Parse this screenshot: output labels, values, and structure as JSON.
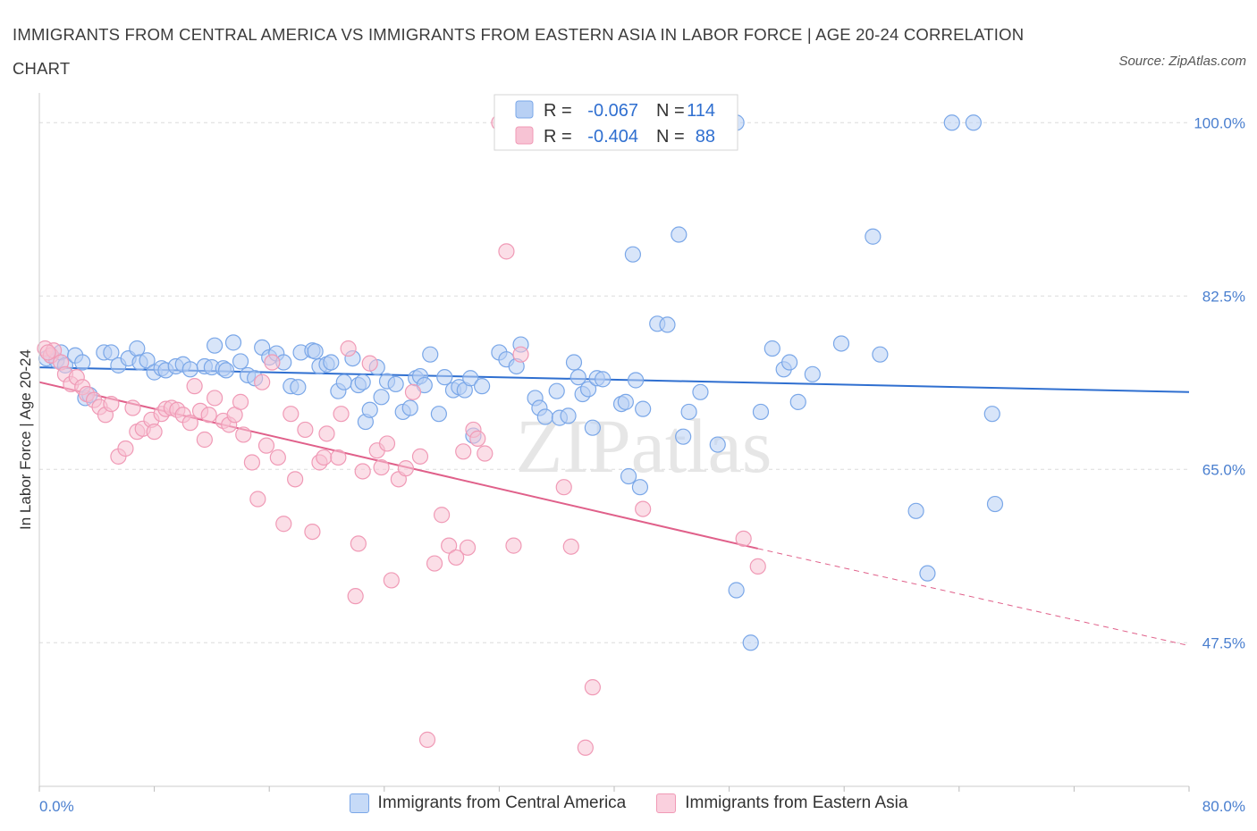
{
  "title": "IMMIGRANTS FROM CENTRAL AMERICA VS IMMIGRANTS FROM EASTERN ASIA IN LABOR FORCE | AGE 20-24 CORRELATION CHART",
  "source": "Source: ZipAtlas.com",
  "watermark": "ZIPatlas",
  "chart_data": {
    "type": "scatter",
    "title": "IMMIGRANTS FROM CENTRAL AMERICA VS IMMIGRANTS FROM EASTERN ASIA IN LABOR FORCE | AGE 20-24 CORRELATION CHART",
    "ylabel": "In Labor Force | Age 20-24",
    "xlabel": "",
    "xlim": [
      0,
      80
    ],
    "ylim": [
      33,
      103
    ],
    "x_tick_labels": [
      "0.0%",
      "80.0%"
    ],
    "y_ticks": [
      47.5,
      65.0,
      82.5,
      100.0
    ],
    "y_tick_labels": [
      "47.5%",
      "65.0%",
      "82.5%",
      "100.0%"
    ],
    "grid": "horizontal dashed",
    "legend_position": "bottom-center",
    "stats_labels": {
      "r": "R =",
      "n": "N ="
    },
    "series": [
      {
        "name": "Immigrants from Central America",
        "color": "#7aa7e8",
        "fill": "#b8d0f4",
        "line_color": "#2f6fd0",
        "r": "-0.067",
        "n": "114",
        "trend": {
          "x": [
            0,
            80
          ],
          "y": [
            75.3,
            72.8
          ]
        },
        "points": [
          [
            0.5,
            76.2
          ],
          [
            0.8,
            76.5
          ],
          [
            1.2,
            76.0
          ],
          [
            1.5,
            76.8
          ],
          [
            1.8,
            75.5
          ],
          [
            2.5,
            76.5
          ],
          [
            3.0,
            75.8
          ],
          [
            3.2,
            72.2
          ],
          [
            3.5,
            72.5
          ],
          [
            4.5,
            76.8
          ],
          [
            5.0,
            76.8
          ],
          [
            5.5,
            75.5
          ],
          [
            6.2,
            76.2
          ],
          [
            6.8,
            77.2
          ],
          [
            7.0,
            75.8
          ],
          [
            7.5,
            76.0
          ],
          [
            8.0,
            74.8
          ],
          [
            8.5,
            75.2
          ],
          [
            8.8,
            75.0
          ],
          [
            9.5,
            75.4
          ],
          [
            10.0,
            75.6
          ],
          [
            10.5,
            75.1
          ],
          [
            11.5,
            75.4
          ],
          [
            12.0,
            75.3
          ],
          [
            12.2,
            77.5
          ],
          [
            12.8,
            75.2
          ],
          [
            13.0,
            75.0
          ],
          [
            13.5,
            77.8
          ],
          [
            14.0,
            75.9
          ],
          [
            14.5,
            74.5
          ],
          [
            15.0,
            74.2
          ],
          [
            15.5,
            77.3
          ],
          [
            16.0,
            76.3
          ],
          [
            16.5,
            76.7
          ],
          [
            17.0,
            75.8
          ],
          [
            17.5,
            73.4
          ],
          [
            18.0,
            73.3
          ],
          [
            18.2,
            76.8
          ],
          [
            19.0,
            77.0
          ],
          [
            19.2,
            76.9
          ],
          [
            19.5,
            75.4
          ],
          [
            20.0,
            75.6
          ],
          [
            20.3,
            75.8
          ],
          [
            20.8,
            72.9
          ],
          [
            21.2,
            73.8
          ],
          [
            21.8,
            76.2
          ],
          [
            22.2,
            73.5
          ],
          [
            22.5,
            73.8
          ],
          [
            22.7,
            69.8
          ],
          [
            23.0,
            71.0
          ],
          [
            23.5,
            75.3
          ],
          [
            23.8,
            72.3
          ],
          [
            24.2,
            73.9
          ],
          [
            24.8,
            73.6
          ],
          [
            25.3,
            70.8
          ],
          [
            25.8,
            71.2
          ],
          [
            26.2,
            74.2
          ],
          [
            26.5,
            74.4
          ],
          [
            26.8,
            73.5
          ],
          [
            27.2,
            76.6
          ],
          [
            27.8,
            70.6
          ],
          [
            28.2,
            74.3
          ],
          [
            28.8,
            73.0
          ],
          [
            29.2,
            73.3
          ],
          [
            29.6,
            73.0
          ],
          [
            30.0,
            74.2
          ],
          [
            30.2,
            68.4
          ],
          [
            30.8,
            73.4
          ],
          [
            32.0,
            76.8
          ],
          [
            32.5,
            76.1
          ],
          [
            33.2,
            75.4
          ],
          [
            33.5,
            77.6
          ],
          [
            34.5,
            72.2
          ],
          [
            34.8,
            71.2
          ],
          [
            35.2,
            70.3
          ],
          [
            36.0,
            72.9
          ],
          [
            36.2,
            70.2
          ],
          [
            36.8,
            70.4
          ],
          [
            37.2,
            75.8
          ],
          [
            37.5,
            74.3
          ],
          [
            37.8,
            72.6
          ],
          [
            38.2,
            73.1
          ],
          [
            38.5,
            69.2
          ],
          [
            38.8,
            74.2
          ],
          [
            39.2,
            74.1
          ],
          [
            40.5,
            71.6
          ],
          [
            40.8,
            71.8
          ],
          [
            41.0,
            64.3
          ],
          [
            41.5,
            74.0
          ],
          [
            41.8,
            63.2
          ],
          [
            42.0,
            71.1
          ],
          [
            43.0,
            79.7
          ],
          [
            44.5,
            88.7
          ],
          [
            44.8,
            68.3
          ],
          [
            45.2,
            70.8
          ],
          [
            46.0,
            72.8
          ],
          [
            47.2,
            67.5
          ],
          [
            48.5,
            52.8
          ],
          [
            49.5,
            47.5
          ],
          [
            50.2,
            70.8
          ],
          [
            51.0,
            77.2
          ],
          [
            51.8,
            75.1
          ],
          [
            52.2,
            75.8
          ],
          [
            52.8,
            71.8
          ],
          [
            53.8,
            74.6
          ],
          [
            55.8,
            77.7
          ],
          [
            58.0,
            88.5
          ],
          [
            58.5,
            76.6
          ],
          [
            61.0,
            60.8
          ],
          [
            61.8,
            54.5
          ],
          [
            63.5,
            100.0
          ],
          [
            65.0,
            100.0
          ],
          [
            66.3,
            70.6
          ],
          [
            66.5,
            61.5
          ],
          [
            47.8,
            100.0
          ],
          [
            48.5,
            100.0
          ],
          [
            41.3,
            86.7
          ],
          [
            43.7,
            79.6
          ]
        ]
      },
      {
        "name": "Immigrants from Eastern Asia",
        "color": "#f09ab6",
        "fill": "#f7c3d4",
        "line_color": "#e0608a",
        "r": "-0.404",
        "n": "88",
        "trend": {
          "x": [
            0,
            50
          ],
          "y": [
            73.8,
            57.0
          ]
        },
        "trend_dashed": {
          "x": [
            50,
            80
          ],
          "y": [
            57.0,
            47.2
          ]
        },
        "points": [
          [
            0.4,
            77.2
          ],
          [
            0.8,
            76.5
          ],
          [
            1.0,
            77.0
          ],
          [
            1.5,
            75.8
          ],
          [
            1.8,
            74.6
          ],
          [
            2.2,
            73.6
          ],
          [
            2.6,
            74.3
          ],
          [
            3.0,
            73.3
          ],
          [
            3.3,
            72.6
          ],
          [
            3.8,
            72.0
          ],
          [
            4.2,
            71.3
          ],
          [
            4.6,
            70.5
          ],
          [
            5.0,
            71.6
          ],
          [
            5.5,
            66.3
          ],
          [
            6.0,
            67.1
          ],
          [
            6.5,
            71.2
          ],
          [
            6.8,
            68.8
          ],
          [
            7.2,
            69.1
          ],
          [
            7.8,
            70.0
          ],
          [
            8.0,
            68.8
          ],
          [
            8.5,
            70.6
          ],
          [
            8.8,
            71.1
          ],
          [
            9.2,
            71.2
          ],
          [
            9.6,
            71.0
          ],
          [
            10.0,
            70.5
          ],
          [
            10.5,
            69.7
          ],
          [
            10.8,
            73.4
          ],
          [
            11.2,
            70.9
          ],
          [
            11.5,
            68.0
          ],
          [
            11.8,
            70.5
          ],
          [
            12.2,
            72.2
          ],
          [
            12.8,
            69.9
          ],
          [
            13.2,
            69.5
          ],
          [
            13.6,
            70.5
          ],
          [
            14.0,
            71.8
          ],
          [
            14.2,
            68.5
          ],
          [
            14.8,
            65.7
          ],
          [
            15.2,
            62.0
          ],
          [
            15.5,
            73.8
          ],
          [
            15.8,
            67.4
          ],
          [
            16.2,
            75.8
          ],
          [
            16.6,
            66.2
          ],
          [
            17.0,
            59.5
          ],
          [
            17.5,
            70.6
          ],
          [
            17.8,
            64.0
          ],
          [
            18.5,
            69.0
          ],
          [
            19.0,
            58.7
          ],
          [
            19.5,
            65.7
          ],
          [
            19.8,
            66.2
          ],
          [
            20.0,
            68.6
          ],
          [
            20.8,
            66.2
          ],
          [
            21.0,
            70.6
          ],
          [
            21.5,
            77.2
          ],
          [
            22.0,
            52.2
          ],
          [
            22.2,
            57.5
          ],
          [
            22.5,
            64.8
          ],
          [
            23.0,
            75.7
          ],
          [
            23.5,
            66.9
          ],
          [
            23.8,
            65.2
          ],
          [
            24.2,
            67.6
          ],
          [
            24.5,
            53.8
          ],
          [
            25.0,
            64.0
          ],
          [
            25.5,
            65.1
          ],
          [
            26.0,
            72.8
          ],
          [
            26.5,
            66.3
          ],
          [
            27.0,
            37.7
          ],
          [
            27.5,
            55.5
          ],
          [
            28.0,
            60.4
          ],
          [
            28.5,
            57.3
          ],
          [
            29.0,
            56.1
          ],
          [
            29.5,
            66.8
          ],
          [
            29.8,
            57.1
          ],
          [
            30.2,
            69.0
          ],
          [
            30.5,
            68.1
          ],
          [
            31.0,
            66.6
          ],
          [
            32.0,
            100.0
          ],
          [
            32.5,
            87.0
          ],
          [
            33.0,
            57.3
          ],
          [
            33.5,
            76.6
          ],
          [
            34.0,
            100.0
          ],
          [
            36.5,
            63.2
          ],
          [
            37.0,
            57.2
          ],
          [
            38.5,
            43.0
          ],
          [
            38.0,
            36.9
          ],
          [
            42.0,
            61.0
          ],
          [
            49.0,
            58.0
          ],
          [
            50.0,
            55.2
          ],
          [
            0.6,
            76.8
          ]
        ]
      }
    ]
  }
}
